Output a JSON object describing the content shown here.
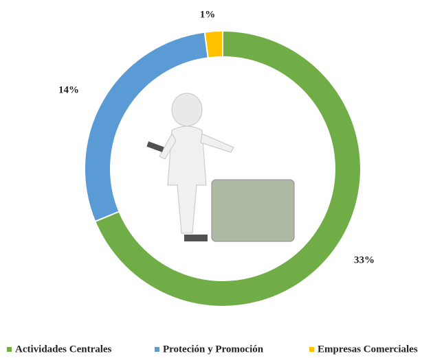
{
  "chart_data": {
    "type": "donut",
    "categories": [
      "Actividades Centrales",
      "Proteción y Promoción",
      "Empresas Comerciales"
    ],
    "values": [
      33,
      14,
      1
    ],
    "value_labels": [
      "33%",
      "14%",
      "1%"
    ],
    "colors": [
      "#70ad47",
      "#5b9bd5",
      "#ffc000"
    ]
  }
}
